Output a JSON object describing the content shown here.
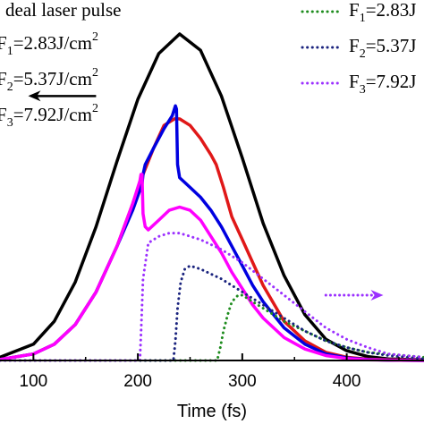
{
  "chart_data": {
    "type": "line",
    "xlabel": "Time (fs)",
    "xlim": [
      68,
      474
    ],
    "xticks": [
      100,
      200,
      300,
      400
    ],
    "left_legend": {
      "title": "deal laser pulse",
      "entries": [
        {
          "prefix": "F",
          "sub": "1",
          "text": "=2.83J/cm",
          "sup": "2"
        },
        {
          "prefix": "F",
          "sub": "2",
          "text": "=5.37J/cm",
          "sup": "2"
        },
        {
          "prefix": "F",
          "sub": "3",
          "text": "=7.92J/cm",
          "sup": "2"
        }
      ]
    },
    "right_legend": {
      "entries": [
        {
          "prefix": "F",
          "sub": "1",
          "text": "=2.83J",
          "color": "#1e8c1e"
        },
        {
          "prefix": "F",
          "sub": "2",
          "text": "=5.37J",
          "color": "#1a237e"
        },
        {
          "prefix": "F",
          "sub": "3",
          "text": "=7.92J",
          "color": "#9b30ff"
        }
      ]
    },
    "arrows": [
      {
        "direction": "left",
        "color": "#000000",
        "from": [
          160,
          0.81
        ],
        "to": [
          95,
          0.81
        ]
      },
      {
        "direction": "right",
        "color": "#9b30ff",
        "from": [
          380,
          0.2
        ],
        "to": [
          435,
          0.2
        ]
      }
    ],
    "series": [
      {
        "color": "#000000",
        "style": "solid",
        "x": [
          68,
          100,
          120,
          140,
          160,
          180,
          200,
          220,
          240,
          260,
          280,
          300,
          320,
          340,
          360,
          380,
          400,
          420,
          440,
          474
        ],
        "y": [
          0.01,
          0.05,
          0.12,
          0.24,
          0.41,
          0.61,
          0.8,
          0.94,
          1.0,
          0.95,
          0.81,
          0.62,
          0.42,
          0.26,
          0.14,
          0.065,
          0.03,
          0.012,
          0.005,
          0.002
        ]
      },
      {
        "color": "#e01818",
        "style": "solid",
        "x": [
          68,
          100,
          120,
          140,
          160,
          180,
          195,
          205,
          215,
          225,
          235,
          240,
          250,
          260,
          270,
          275,
          282,
          290,
          300,
          310,
          320,
          340,
          360,
          380,
          400,
          420,
          440,
          474
        ],
        "y": [
          0.003,
          0.02,
          0.05,
          0.11,
          0.21,
          0.35,
          0.48,
          0.57,
          0.65,
          0.72,
          0.74,
          0.74,
          0.72,
          0.68,
          0.63,
          0.6,
          0.53,
          0.44,
          0.37,
          0.3,
          0.23,
          0.12,
          0.06,
          0.025,
          0.01,
          0.004,
          0.002,
          0.001
        ]
      },
      {
        "color": "#0000e0",
        "style": "solid",
        "x": [
          68,
          100,
          120,
          140,
          160,
          180,
          195,
          204,
          205,
          207,
          215,
          225,
          233,
          236,
          237,
          238,
          240,
          250,
          260,
          270,
          280,
          290,
          300,
          310,
          320,
          340,
          360,
          380,
          400,
          420,
          440,
          474
        ],
        "y": [
          0.003,
          0.02,
          0.05,
          0.11,
          0.21,
          0.35,
          0.46,
          0.54,
          0.57,
          0.6,
          0.65,
          0.71,
          0.75,
          0.78,
          0.77,
          0.6,
          0.56,
          0.53,
          0.5,
          0.46,
          0.41,
          0.35,
          0.29,
          0.23,
          0.18,
          0.1,
          0.05,
          0.02,
          0.008,
          0.003,
          0.001,
          0.0
        ]
      },
      {
        "color": "#ff00ff",
        "style": "solid",
        "x": [
          68,
          100,
          120,
          140,
          160,
          180,
          195,
          202,
          203,
          204,
          205,
          207,
          210,
          220,
          230,
          240,
          250,
          260,
          270,
          280,
          290,
          300,
          310,
          320,
          340,
          360,
          380,
          400,
          420,
          440,
          474
        ],
        "y": [
          0.003,
          0.02,
          0.05,
          0.11,
          0.21,
          0.35,
          0.48,
          0.55,
          0.57,
          0.57,
          0.45,
          0.41,
          0.4,
          0.43,
          0.46,
          0.47,
          0.46,
          0.43,
          0.38,
          0.33,
          0.27,
          0.22,
          0.17,
          0.13,
          0.07,
          0.035,
          0.015,
          0.006,
          0.002,
          0.001,
          0.0
        ]
      },
      {
        "color": "#1e8c1e",
        "style": "dotted",
        "x": [
          68,
          270,
          276,
          279,
          282,
          286,
          290,
          296,
          300,
          310,
          320,
          330,
          340,
          360,
          380,
          400,
          420,
          474
        ],
        "y": [
          0.0,
          0.0,
          0.0,
          0.04,
          0.09,
          0.14,
          0.18,
          0.2,
          0.2,
          0.18,
          0.16,
          0.14,
          0.12,
          0.09,
          0.06,
          0.04,
          0.025,
          0.01
        ]
      },
      {
        "color": "#1a237e",
        "style": "dotted",
        "x": [
          68,
          230,
          234,
          236,
          238,
          241,
          245,
          250,
          260,
          280,
          300,
          320,
          340,
          360,
          380,
          400,
          420,
          440,
          474
        ],
        "y": [
          0.0,
          0.0,
          0.0,
          0.06,
          0.16,
          0.24,
          0.28,
          0.29,
          0.28,
          0.25,
          0.21,
          0.17,
          0.13,
          0.09,
          0.06,
          0.04,
          0.025,
          0.015,
          0.005
        ]
      },
      {
        "color": "#9b30ff",
        "style": "dotted",
        "x": [
          68,
          198,
          202,
          203,
          205,
          210,
          220,
          230,
          240,
          260,
          280,
          300,
          320,
          340,
          360,
          380,
          400,
          420,
          440,
          474
        ],
        "y": [
          0.0,
          0.0,
          0.0,
          0.08,
          0.25,
          0.36,
          0.38,
          0.39,
          0.39,
          0.37,
          0.34,
          0.3,
          0.25,
          0.2,
          0.15,
          0.1,
          0.065,
          0.04,
          0.02,
          0.01
        ]
      }
    ]
  }
}
